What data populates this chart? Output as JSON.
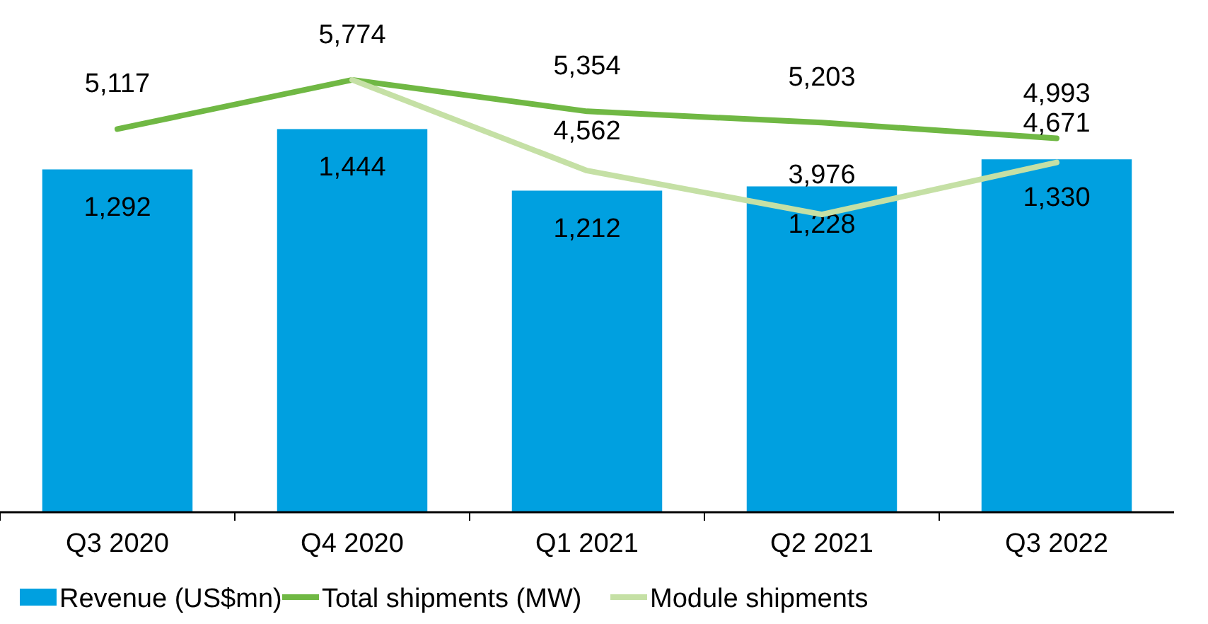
{
  "chart_data": {
    "type": "bar",
    "categories": [
      "Q3 2020",
      "Q4 2020",
      "Q1 2021",
      "Q2 2021",
      "Q3 2022"
    ],
    "series": [
      {
        "name": "Revenue (US$mn)",
        "color": "#00a0e0",
        "values": [
          1292,
          1444,
          1212,
          1228,
          1330
        ],
        "value_labels": [
          "1,292",
          "1,444",
          "1,212",
          "1,228",
          "1,330"
        ]
      },
      {
        "name": "Total shipments (MW)",
        "type": "line",
        "axis": "y2",
        "color": "#70b844",
        "values": [
          5117,
          5774,
          5354,
          5203,
          4993
        ],
        "value_labels": [
          "5,117",
          "5,774",
          "5,354",
          "5,203",
          "4,993"
        ]
      },
      {
        "name": "Module shipments",
        "type": "line",
        "axis": "y2",
        "color": "#c5e0a5",
        "values": [
          null,
          5774,
          4562,
          3976,
          4671
        ],
        "value_labels": [
          null,
          null,
          "4,562",
          "3,976",
          "4,671"
        ]
      }
    ],
    "legend": "bottom",
    "tick_labels": "x",
    "marker": "none",
    "line_style": "solid"
  }
}
